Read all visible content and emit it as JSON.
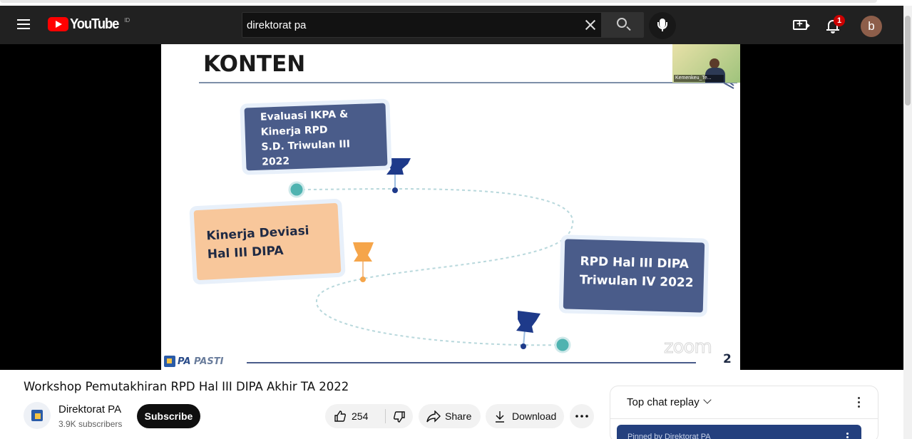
{
  "header": {
    "logo_text": "YouTube",
    "country_code": "ID",
    "search_value": "direktorat pa",
    "notification_count": "1",
    "avatar_letter": "b",
    "icons": [
      "menu-icon",
      "youtube-logo",
      "clear-icon",
      "search-icon",
      "mic-icon",
      "create-video-icon",
      "bell-icon"
    ]
  },
  "slide": {
    "title": "KONTEN",
    "card1": [
      "Evaluasi IKPA &",
      "Kinerja RPD",
      "S.D. Triwulan III",
      "2022"
    ],
    "card2": [
      "Kinerja Deviasi",
      "Hal III DIPA"
    ],
    "card3": [
      "RPD Hal III DIPA",
      "Triwulan IV 2022"
    ],
    "cam_label": "Kemenkeu_Te...",
    "brand_prefix": "PA",
    "brand_suffix": "PASTI",
    "watermark": "zoom",
    "page_number": "2",
    "colors": {
      "card_dark": "#4a5c8a",
      "card_light": "#f8c79b",
      "dot_teal": "#4fb3b0"
    }
  },
  "video": {
    "title": "Workshop Pemutakhiran RPD Hal III DIPA Akhir TA 2022",
    "channel_name": "Direktorat PA",
    "subscribers": "3.9K subscribers",
    "subscribe_label": "Subscribe",
    "like_count": "254",
    "share_label": "Share",
    "download_label": "Download"
  },
  "chat": {
    "title": "Top chat replay",
    "pinned_text": "Pinned by Direktorat PA"
  }
}
